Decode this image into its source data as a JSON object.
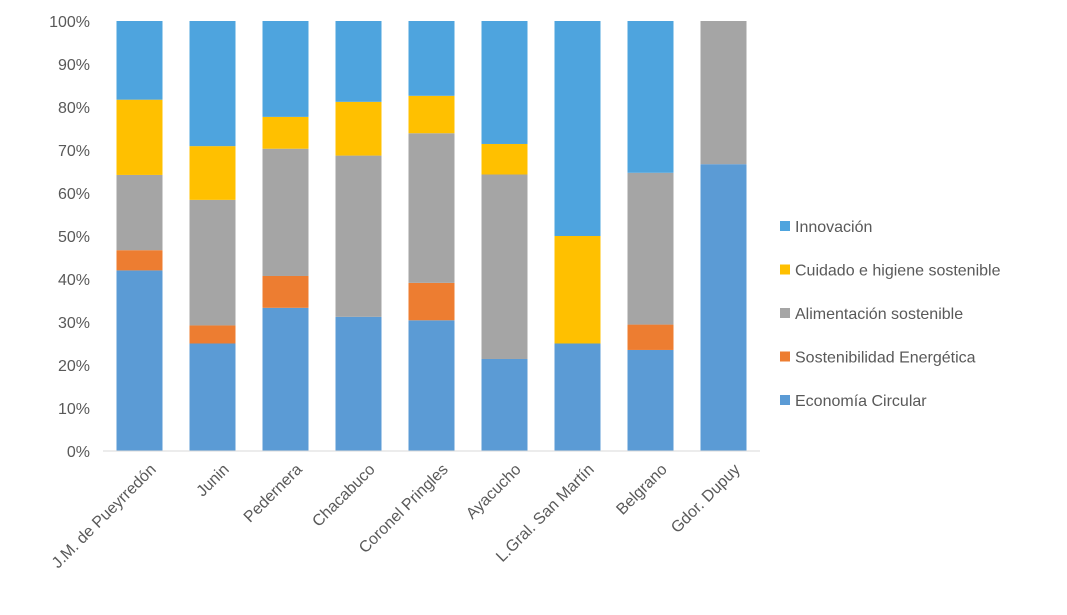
{
  "chart_data": {
    "type": "bar",
    "stacked": true,
    "percent_stacked": true,
    "categories": [
      "J.M. de Pueyrredón",
      "Junin",
      "Pedernera",
      "Chacabuco",
      "Coronel Pringles",
      "Ayacucho",
      "L.Gral. San Martín",
      "Belgrano",
      "Gdor. Dupuy"
    ],
    "series": [
      {
        "name": "Economía Circular",
        "color": "#5B9BD5",
        "values": [
          42,
          25,
          33.3,
          31.2,
          30.4,
          21.4,
          25,
          23.5,
          66.7
        ]
      },
      {
        "name": "Sostenibilidad Energética",
        "color": "#ED7D31",
        "values": [
          4.7,
          4.2,
          7.4,
          0,
          8.7,
          0,
          0,
          5.9,
          0
        ]
      },
      {
        "name": "Alimentación sostenible",
        "color": "#A5A5A5",
        "values": [
          17.5,
          29.2,
          29.6,
          37.5,
          34.8,
          42.9,
          0,
          35.3,
          33.3
        ]
      },
      {
        "name": "Cuidado e higiene sostenible",
        "color": "#FFC000",
        "values": [
          17.5,
          12.5,
          7.4,
          12.5,
          8.7,
          7.1,
          25,
          0,
          0
        ]
      },
      {
        "name": "Innovación",
        "color": "#4EA4DE",
        "values": [
          18.3,
          29.1,
          22.3,
          18.8,
          17.4,
          28.6,
          50,
          35.3,
          0
        ]
      }
    ],
    "y_ticks": [
      "0%",
      "10%",
      "20%",
      "30%",
      "40%",
      "50%",
      "60%",
      "70%",
      "80%",
      "90%",
      "100%"
    ],
    "ylim": [
      0,
      100
    ],
    "legend_position": "right",
    "legend_order": [
      "Innovación",
      "Cuidado e higiene sostenible",
      "Alimentación sostenible",
      "Sostenibilidad Energética",
      "Economía Circular"
    ],
    "grid": false
  }
}
